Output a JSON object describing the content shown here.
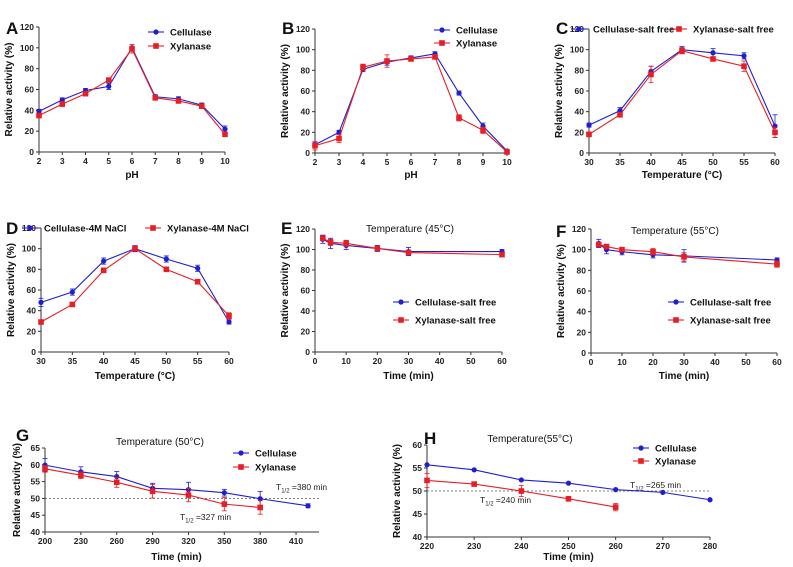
{
  "colors": {
    "cellulase": "#1f1fd0",
    "xylanase": "#e81e25"
  },
  "chart_data": [
    {
      "panel": "A",
      "type": "line",
      "title": "",
      "xlabel": "pH",
      "ylabel": "Relative activity (%)",
      "xlim": [
        2,
        10
      ],
      "ylim": [
        0,
        120
      ],
      "xticks": [
        "2",
        "3",
        "4",
        "5",
        "6",
        "7",
        "8",
        "9",
        "10"
      ],
      "yticks": [
        "0",
        "20",
        "40",
        "60",
        "80",
        "100",
        "120"
      ],
      "legend_position": "top-right",
      "x": [
        2,
        3,
        4,
        5,
        6,
        7,
        8,
        9,
        10
      ],
      "series": [
        {
          "name": "Cellulase",
          "values": [
            39,
            50,
            59,
            63,
            100,
            53,
            51,
            45,
            22
          ],
          "errors": [
            2,
            2,
            2,
            3,
            3,
            2,
            2,
            2,
            3
          ]
        },
        {
          "name": "Xylanase",
          "values": [
            35,
            46,
            56,
            69,
            99,
            52,
            49,
            44,
            17
          ],
          "errors": [
            2,
            2,
            2,
            2,
            4,
            2,
            2,
            2,
            2
          ]
        }
      ]
    },
    {
      "panel": "B",
      "type": "line",
      "title": "",
      "xlabel": "pH",
      "ylabel": "Relative activity (%)",
      "xlim": [
        2,
        10
      ],
      "ylim": [
        0,
        120
      ],
      "xticks": [
        "2",
        "3",
        "4",
        "5",
        "6",
        "7",
        "8",
        "9",
        "10"
      ],
      "yticks": [
        "0",
        "20",
        "40",
        "60",
        "80",
        "100",
        "120"
      ],
      "legend_position": "top-right",
      "x": [
        2,
        3,
        4,
        5,
        6,
        7,
        8,
        9,
        10
      ],
      "series": [
        {
          "name": "Cellulase",
          "values": [
            8,
            20,
            81,
            88,
            92,
            96,
            58,
            26,
            2
          ],
          "errors": [
            2,
            2,
            2,
            3,
            2,
            2,
            2,
            3,
            1
          ]
        },
        {
          "name": "Xylanase",
          "values": [
            7,
            14,
            83,
            89,
            91,
            93,
            34,
            22,
            1
          ],
          "errors": [
            4,
            4,
            3,
            6,
            2,
            2,
            3,
            3,
            1
          ]
        }
      ]
    },
    {
      "panel": "C",
      "type": "line",
      "title": "",
      "xlabel": "Temperature (°C)",
      "ylabel": "Relative activity (%)",
      "xlim": [
        30,
        60
      ],
      "ylim": [
        0,
        120
      ],
      "xticks": [
        "30",
        "35",
        "40",
        "45",
        "50",
        "55",
        "60"
      ],
      "yticks": [
        "0",
        "20",
        "40",
        "60",
        "80",
        "100",
        "120"
      ],
      "legend_position": "top",
      "x": [
        30,
        35,
        40,
        45,
        50,
        55,
        60
      ],
      "series": [
        {
          "name": "Cellulase-salt free",
          "values": [
            27,
            41,
            79,
            100,
            97,
            94,
            26
          ],
          "errors": [
            2,
            3,
            5,
            3,
            4,
            3,
            11
          ]
        },
        {
          "name": "Xylanase-salt free",
          "values": [
            18,
            37,
            76,
            99,
            91,
            84,
            20
          ],
          "errors": [
            2,
            2,
            8,
            3,
            2,
            5,
            5
          ]
        }
      ]
    },
    {
      "panel": "D",
      "type": "line",
      "title": "",
      "xlabel": "Temperature (°C)",
      "ylabel": "Relative activity (%)",
      "xlim": [
        30,
        60
      ],
      "ylim": [
        0,
        120
      ],
      "xticks": [
        "30",
        "35",
        "40",
        "45",
        "50",
        "55",
        "60"
      ],
      "yticks": [
        "0",
        "20",
        "40",
        "60",
        "80",
        "100",
        "120"
      ],
      "legend_position": "top",
      "x": [
        30,
        35,
        40,
        45,
        50,
        55,
        60
      ],
      "series": [
        {
          "name": "Cellulase-4M NaCl",
          "values": [
            48,
            58,
            88,
            100,
            90,
            81,
            29
          ],
          "errors": [
            4,
            3,
            3,
            3,
            3,
            3,
            2
          ]
        },
        {
          "name": "Xylanase-4M NaCl",
          "values": [
            29,
            46,
            79,
            100,
            80,
            68,
            35
          ],
          "errors": [
            2,
            2,
            2,
            2,
            2,
            2,
            3
          ]
        }
      ]
    },
    {
      "panel": "E",
      "type": "line",
      "title": "Temperature (45°C)",
      "xlabel": "Time (min)",
      "ylabel": "Relative activity (%)",
      "xlim": [
        0,
        60
      ],
      "ylim": [
        0,
        120
      ],
      "xticks": [
        "0",
        "10",
        "20",
        "30",
        "40",
        "50",
        "60"
      ],
      "yticks": [
        "0",
        "20",
        "40",
        "60",
        "80",
        "100",
        "120"
      ],
      "legend_position": "center-right",
      "x": [
        2.5,
        5,
        10,
        20,
        30,
        60
      ],
      "series": [
        {
          "name": "Cellulase-salt free",
          "values": [
            110,
            106,
            104,
            101,
            98,
            98
          ],
          "errors": [
            4,
            5,
            4,
            3,
            4,
            2
          ]
        },
        {
          "name": "Xylanase-salt free",
          "values": [
            111,
            107,
            106,
            101,
            97,
            95
          ],
          "errors": [
            2,
            3,
            3,
            2,
            2,
            2
          ]
        }
      ]
    },
    {
      "panel": "F",
      "type": "line",
      "title": "Temperature (55°C)",
      "xlabel": "Time (min)",
      "ylabel": "Relative activity (%)",
      "xlim": [
        0,
        60
      ],
      "ylim": [
        0,
        120
      ],
      "xticks": [
        "0",
        "10",
        "20",
        "30",
        "40",
        "50",
        "60"
      ],
      "yticks": [
        "0",
        "20",
        "40",
        "60",
        "80",
        "100",
        "120"
      ],
      "legend_position": "center-right",
      "x": [
        2.5,
        5,
        10,
        20,
        30,
        60
      ],
      "series": [
        {
          "name": "Cellulase-salt free",
          "values": [
            106,
            100,
            98,
            95,
            94,
            90
          ],
          "errors": [
            4,
            4,
            3,
            3,
            6,
            2
          ]
        },
        {
          "name": "Xylanase-salt free",
          "values": [
            105,
            103,
            100,
            98,
            93,
            86
          ],
          "errors": [
            2,
            2,
            2,
            3,
            4,
            3
          ]
        }
      ]
    },
    {
      "panel": "G",
      "type": "line",
      "title": "Temperature (50°C)",
      "xlabel": "Time (min)",
      "ylabel": "Relative activity (%)",
      "xlim": [
        200,
        420
      ],
      "ylim": [
        40,
        65
      ],
      "xticks": [
        "200",
        "230",
        "260",
        "290",
        "320",
        "350",
        "380",
        "410"
      ],
      "yticks": [
        "40",
        "45",
        "50",
        "55",
        "60",
        "65"
      ],
      "legend_position": "top-right",
      "reference_line": 50,
      "annotations": [
        {
          "text": "T1/2 =380 min",
          "main": "T",
          "sub": "1/2",
          "rest": " =380 min"
        },
        {
          "text": "T1/2 =327 min",
          "main": "T",
          "sub": "1/2",
          "rest": " =327 min"
        }
      ],
      "series": [
        {
          "name": "Cellulase",
          "x": [
            200,
            230,
            260,
            290,
            320,
            350,
            380,
            420
          ],
          "values": [
            59.9,
            57.9,
            56.5,
            53.0,
            52.6,
            51.7,
            49.9,
            47.8
          ],
          "errors": [
            2,
            1.5,
            1.5,
            1.5,
            2.2,
            1,
            2.2,
            0.6
          ]
        },
        {
          "name": "Xylanase",
          "x": [
            200,
            230,
            260,
            290,
            320,
            350,
            380
          ],
          "values": [
            58.8,
            56.9,
            54.8,
            52.1,
            51.0,
            48.3,
            47.3
          ],
          "errors": [
            1,
            1,
            1.5,
            2,
            2,
            2,
            2
          ]
        }
      ]
    },
    {
      "panel": "H",
      "type": "line",
      "title": "Temperature(55°C)",
      "xlabel": "Time (min)",
      "ylabel": "Relative activity (%)",
      "xlim": [
        220,
        280
      ],
      "ylim": [
        40,
        60
      ],
      "xticks": [
        "220",
        "230",
        "240",
        "250",
        "260",
        "270",
        "280"
      ],
      "yticks": [
        "40",
        "45",
        "50",
        "55",
        "60"
      ],
      "legend_position": "top-right",
      "reference_line": 50,
      "annotations": [
        {
          "text": "T1/2 =265 min",
          "main": "T",
          "sub": "1/2",
          "rest": " =265 min"
        },
        {
          "text": "T1/2 =240 min",
          "main": "T",
          "sub": "1/2",
          "rest": " =240 min"
        }
      ],
      "series": [
        {
          "name": "Cellulase",
          "x": [
            220,
            230,
            240,
            250,
            260,
            270,
            280
          ],
          "values": [
            55.7,
            54.6,
            52.4,
            51.7,
            50.3,
            49.7,
            48.1
          ],
          "errors": [
            0,
            0,
            0,
            0,
            0,
            0,
            0
          ]
        },
        {
          "name": "Xylanase",
          "x": [
            220,
            230,
            240,
            250,
            260
          ],
          "values": [
            52.3,
            51.5,
            50.0,
            48.3,
            46.5
          ],
          "errors": [
            1.5,
            0,
            1.2,
            0,
            0.8
          ]
        }
      ]
    }
  ]
}
